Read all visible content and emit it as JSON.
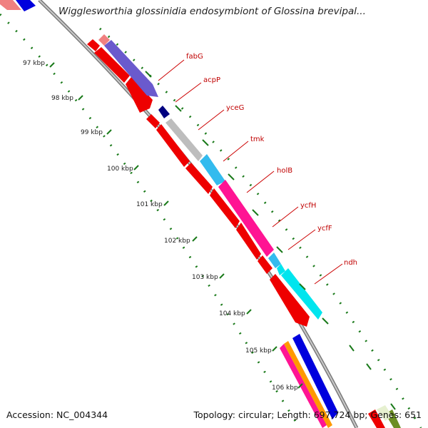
{
  "title": "Wigglesworthia glossinidia endosymbiont of Glossina brevipal...",
  "footer": {
    "accession": "Accession: NC_004344",
    "summary": "Topology: circular; Length: 697,724 bp; Genes: 651"
  },
  "ticks": [
    "97 kbp",
    "98 kbp",
    "99 kbp",
    "100 kbp",
    "101 kbp",
    "102 kbp",
    "103 kbp",
    "104 kbp",
    "105 kbp",
    "106 kbp"
  ],
  "gene_labels": [
    "fabG",
    "acpP",
    "yceG",
    "tmk",
    "holB",
    "ycfH",
    "ycfF",
    "ndh"
  ],
  "colors": {
    "backbone": "#8a8a8a",
    "cds_red": "#ee0000",
    "cds_blue": "#0000dd",
    "cds_navy": "#000080",
    "cds_slate": "#6a5acd",
    "cds_pink": "#ff1493",
    "cds_cyan": "#00e5ee",
    "cds_skyblue": "#33bbee",
    "cds_gray": "#bdbdbd",
    "cds_salmon": "#f08080",
    "cds_orange": "#ff9900",
    "cds_olive": "#6b8e23",
    "tick_green": "#1a7a1a",
    "label_red": "#cc0000"
  }
}
